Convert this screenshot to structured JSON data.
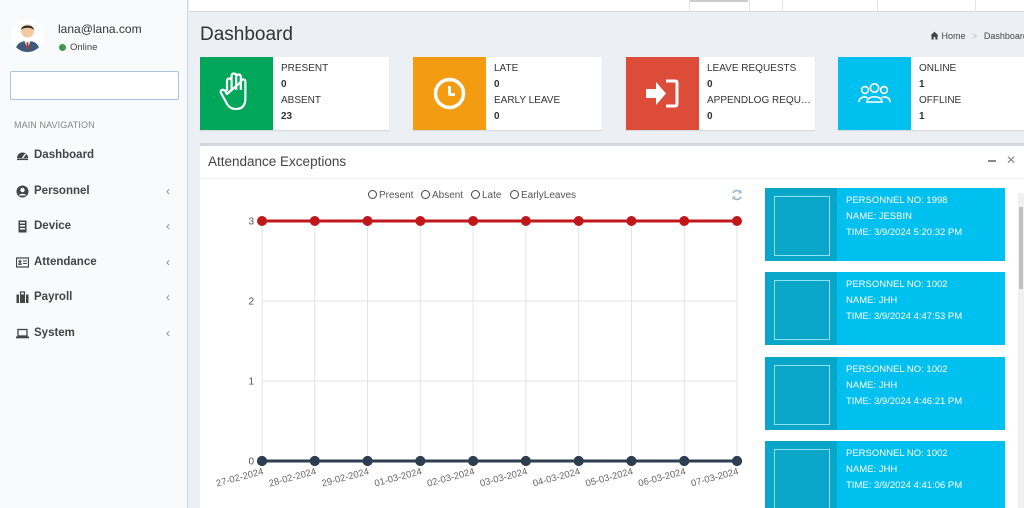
{
  "user": {
    "email": "lana@lana.com",
    "status": "Online"
  },
  "search": {
    "placeholder": ""
  },
  "nav": {
    "header": "MAIN NAVIGATION",
    "items": [
      {
        "label": "Dashboard",
        "icon": "dashboard-icon"
      },
      {
        "label": "Personnel",
        "icon": "user-circle-icon"
      },
      {
        "label": "Device",
        "icon": "device-icon"
      },
      {
        "label": "Attendance",
        "icon": "id-card-icon"
      },
      {
        "label": "Payroll",
        "icon": "briefcase-icon"
      },
      {
        "label": "System",
        "icon": "laptop-icon"
      }
    ]
  },
  "page": {
    "title": "Dashboard"
  },
  "breadcrumb": {
    "home": "Home",
    "current": "Dashboard"
  },
  "info_boxes": [
    {
      "color": "#00a65a",
      "icon": "hand-icon",
      "label1": "PRESENT",
      "value1": "0",
      "label2": "ABSENT",
      "value2": "23"
    },
    {
      "color": "#f39c12",
      "icon": "clock-icon",
      "label1": "LATE",
      "value1": "0",
      "label2": "EARLY LEAVE",
      "value2": "0"
    },
    {
      "color": "#dd4b39",
      "icon": "sign-in-icon",
      "label1": "LEAVE REQUESTS",
      "value1": "0",
      "label2": "APPENDLOG REQUESTS",
      "value2": "0"
    },
    {
      "color": "#00c0ef",
      "icon": "users-icon",
      "label1": "ONLINE",
      "value1": "1",
      "label2": "OFFLINE",
      "value2": "1"
    }
  ],
  "panel": {
    "title": "Attendance Exceptions"
  },
  "chart_data": {
    "type": "line",
    "categories": [
      "27-02-2024",
      "28-02-2024",
      "29-02-2024",
      "01-03-2024",
      "02-03-2024",
      "03-03-2024",
      "04-03-2024",
      "05-03-2024",
      "06-03-2024",
      "07-03-2024"
    ],
    "series": [
      {
        "name": "Present",
        "color": "#2c3e50",
        "values": [
          0,
          0,
          0,
          0,
          0,
          0,
          0,
          0,
          0,
          0
        ]
      },
      {
        "name": "Absent",
        "color": "#c0171b",
        "values": [
          3,
          3,
          3,
          3,
          3,
          3,
          3,
          3,
          3,
          3
        ]
      },
      {
        "name": "Late",
        "color": "#2c3e50",
        "values": [
          0,
          0,
          0,
          0,
          0,
          0,
          0,
          0,
          0,
          0
        ]
      },
      {
        "name": "EarlyLeaves",
        "color": "#2c3e50",
        "values": [
          0,
          0,
          0,
          0,
          0,
          0,
          0,
          0,
          0,
          0
        ]
      }
    ],
    "yticks": [
      "0",
      "1",
      "2",
      "3"
    ],
    "ylim": [
      0,
      3
    ],
    "grid": true,
    "legend_position": "top"
  },
  "cards": [
    {
      "personnel_no": "PERSONNEL NO: 1998",
      "name": "NAME: JESBIN",
      "time": "TIME: 3/9/2024 5:20:32 PM"
    },
    {
      "personnel_no": "PERSONNEL NO: 1002",
      "name": "NAME: JHH",
      "time": "TIME: 3/9/2024 4:47:53 PM"
    },
    {
      "personnel_no": "PERSONNEL NO: 1002",
      "name": "NAME: JHH",
      "time": "TIME: 3/9/2024 4:46:21 PM"
    },
    {
      "personnel_no": "PERSONNEL NO: 1002",
      "name": "NAME: JHH",
      "time": "TIME: 3/9/2024 4:41:06 PM"
    }
  ]
}
